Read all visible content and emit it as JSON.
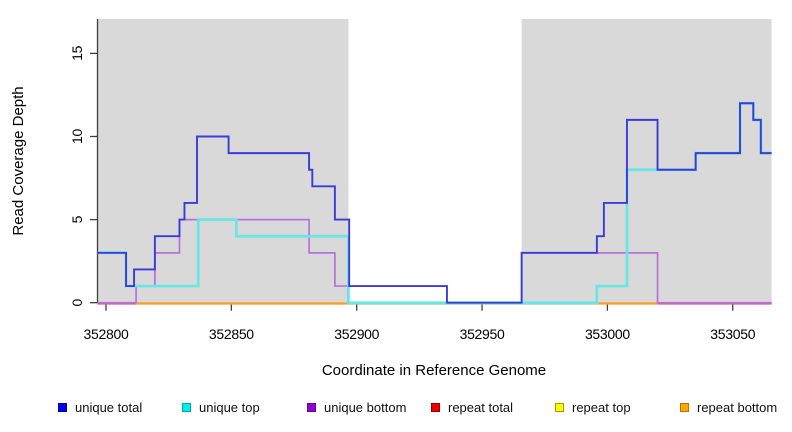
{
  "chart_data": {
    "type": "line",
    "subtype": "step",
    "title": "",
    "xlabel": "Coordinate in Reference Genome",
    "ylabel": "Read Coverage Depth",
    "xlim": [
      352796.6,
      353065.5
    ],
    "ylim": [
      0,
      17.1
    ],
    "xticks": [
      352800,
      352850,
      352900,
      352950,
      353000,
      353050
    ],
    "yticks": [
      0,
      5,
      10,
      15
    ],
    "grid": false,
    "legend_position": "bottom",
    "panel_background": "#ffffff",
    "shaded_region_color": "#d9d9d9",
    "shaded_regions": [
      {
        "from": 352796.6,
        "to": 352896.7
      },
      {
        "from": 352965.8,
        "to": 353065.5
      }
    ],
    "baseline_segments": [
      {
        "from": 352796.6,
        "to": 352812.0,
        "color": "#d95b8e"
      },
      {
        "from": 352812.0,
        "to": 352896.7,
        "color": "#ff9d23"
      },
      {
        "from": 352896.7,
        "to": 352995.8,
        "color": "#8fc998"
      },
      {
        "from": 352995.8,
        "to": 353020.0,
        "color": "#ff9d23"
      },
      {
        "from": 353020.0,
        "to": 353065.5,
        "color": "#d95b8e"
      }
    ],
    "series": [
      {
        "name": "unique bottom",
        "color": "#b671dd",
        "width": 1.7,
        "points": [
          [
            352796.6,
            0
          ],
          [
            352812,
            1
          ],
          [
            352819.5,
            3
          ],
          [
            352829.3,
            5
          ],
          [
            352881,
            3
          ],
          [
            352891.3,
            1
          ],
          [
            352896.5,
            0
          ],
          [
            352965.8,
            3
          ],
          [
            353020,
            0
          ],
          [
            353065.5,
            0
          ]
        ]
      },
      {
        "name": "unique top",
        "color": "#68e6e6",
        "width": 2.7,
        "points": [
          [
            352796.6,
            3
          ],
          [
            352808,
            1
          ],
          [
            352836.8,
            5
          ],
          [
            352852,
            4
          ],
          [
            352896.7,
            0
          ],
          [
            352995.8,
            1
          ],
          [
            353007.8,
            8
          ],
          [
            353035.2,
            9
          ],
          [
            353052.9,
            12
          ],
          [
            353058.2,
            11
          ],
          [
            353061.2,
            9
          ],
          [
            353065.5,
            9
          ]
        ]
      },
      {
        "name": "unique total",
        "color": "#3b3bd8",
        "width": 1.9,
        "points": [
          [
            352796.6,
            3
          ],
          [
            352808,
            1
          ],
          [
            352811.2,
            2
          ],
          [
            352819.5,
            4
          ],
          [
            352829.3,
            5
          ],
          [
            352831.3,
            6
          ],
          [
            352836.3,
            10
          ],
          [
            352848.9,
            9
          ],
          [
            352881,
            8
          ],
          [
            352882.3,
            7
          ],
          [
            352891.3,
            5
          ],
          [
            352897,
            1
          ],
          [
            352936,
            0
          ],
          [
            352965.8,
            3
          ],
          [
            352995.8,
            4
          ],
          [
            352998.6,
            6
          ],
          [
            353007.8,
            11
          ],
          [
            353020,
            8
          ],
          [
            353035.2,
            9
          ],
          [
            353052.9,
            12
          ],
          [
            353058.2,
            11
          ],
          [
            353061.2,
            9
          ],
          [
            353065.5,
            9
          ]
        ]
      }
    ],
    "legend": {
      "entries": [
        {
          "label": "unique total",
          "fill": "#0000ee",
          "border": "#0000aa"
        },
        {
          "label": "unique top",
          "fill": "#00eeee",
          "border": "#00a8a8"
        },
        {
          "label": "unique bottom",
          "fill": "#8d06c9",
          "border": "#66049a"
        },
        {
          "label": "repeat total",
          "fill": "#ee0000",
          "border": "#990000"
        },
        {
          "label": "repeat top",
          "fill": "#ffff00",
          "border": "#9d9d00"
        },
        {
          "label": "repeat bottom",
          "fill": "#ffa500",
          "border": "#b87400"
        }
      ]
    }
  }
}
